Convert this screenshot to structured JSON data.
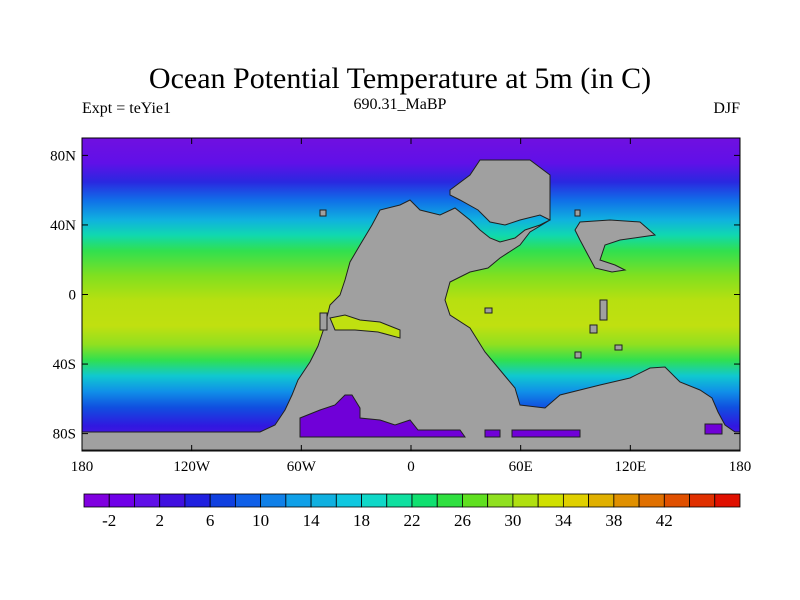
{
  "title": "Ocean Potential Temperature at 5m (in C)",
  "subtitle_left": "Expt = teYie1",
  "subtitle_center": "690.31_MaBP",
  "subtitle_right": "DJF",
  "map": {
    "lon_range": [
      -180,
      180
    ],
    "lat_range": [
      -90,
      90
    ],
    "lon_ticks": [
      {
        "value": -180,
        "label": "180"
      },
      {
        "value": -120,
        "label": "120W"
      },
      {
        "value": -60,
        "label": "60W"
      },
      {
        "value": 0,
        "label": "0"
      },
      {
        "value": 60,
        "label": "60E"
      },
      {
        "value": 120,
        "label": "120E"
      },
      {
        "value": 180,
        "label": "180"
      }
    ],
    "lat_ticks": [
      {
        "value": 80,
        "label": "80N"
      },
      {
        "value": 40,
        "label": "40N"
      },
      {
        "value": 0,
        "label": "0"
      },
      {
        "value": -40,
        "label": "40S"
      },
      {
        "value": -80,
        "label": "80S"
      }
    ],
    "land_color": "#a0a0a0"
  },
  "colorbar": {
    "colors": [
      "#8000e0",
      "#7000e8",
      "#6010e8",
      "#4010e0",
      "#2020e0",
      "#1040e0",
      "#1060e8",
      "#1080e8",
      "#10a0e8",
      "#10b0e0",
      "#10c8e0",
      "#10d8c8",
      "#10e0a0",
      "#10e070",
      "#30e040",
      "#60e020",
      "#90e020",
      "#b0e010",
      "#d0e000",
      "#e0d000",
      "#e0b000",
      "#e09000",
      "#e07000",
      "#e05000",
      "#e03000",
      "#e01000"
    ],
    "labels": [
      {
        "value": -2,
        "label": "-2"
      },
      {
        "value": 2,
        "label": "2"
      },
      {
        "value": 6,
        "label": "6"
      },
      {
        "value": 10,
        "label": "10"
      },
      {
        "value": 14,
        "label": "14"
      },
      {
        "value": 18,
        "label": "18"
      },
      {
        "value": 22,
        "label": "22"
      },
      {
        "value": 26,
        "label": "26"
      },
      {
        "value": 30,
        "label": "30"
      },
      {
        "value": 34,
        "label": "34"
      },
      {
        "value": 38,
        "label": "38"
      },
      {
        "value": 42,
        "label": "42"
      }
    ],
    "min": -4,
    "step": 2
  }
}
